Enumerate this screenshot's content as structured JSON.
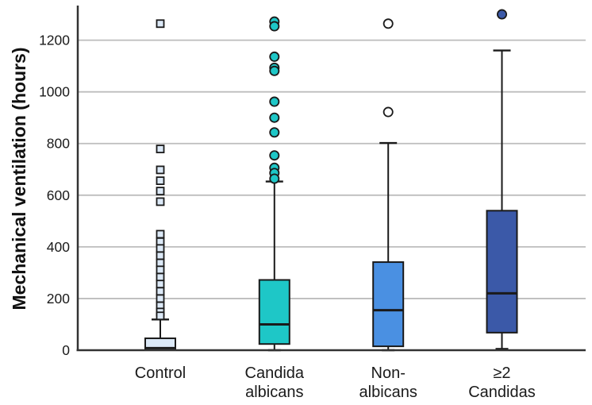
{
  "chart_data": {
    "type": "boxplot",
    "ylabel": "Mechanical ventilation (hours)",
    "xlabel": "",
    "ylim": [
      0,
      1334
    ],
    "yticks": [
      0,
      200,
      400,
      600,
      800,
      1000,
      1200
    ],
    "grid": "horizontal gridlines every 200, light gray",
    "legend": "none",
    "colors": {
      "gridline": "#BDBDBD",
      "axis": "#333333",
      "box_outline": "#1A1A1A",
      "control_fill": "#DCE9F7",
      "candida_albicans_fill": "#1EC7C7",
      "non_albicans_fill": "#4A90E2",
      "ge2_candidas_fill": "#3B59A8",
      "open_marker_fill": "#FFFFFF"
    },
    "groups": [
      {
        "label_lines": [
          "Control"
        ],
        "box_fill": "#DCE9F7",
        "marker": "square",
        "marker_fill": "#DCE9F7",
        "whisker_low": 0,
        "q1": 0,
        "median": 8,
        "q3": 46,
        "whisker_high": 119,
        "outliers": [
          1264,
          779,
          698,
          656,
          616,
          575,
          449,
          420,
          394,
          366,
          338,
          311,
          283,
          256,
          228,
          200,
          172,
          148,
          133
        ]
      },
      {
        "label_lines": [
          "Candida",
          "albicans"
        ],
        "box_fill": "#1EC7C7",
        "marker": "circle",
        "marker_fill": "#1EC7C7",
        "whisker_low": 0,
        "q1": 24,
        "median": 100,
        "q3": 272,
        "whisker_high": 653,
        "outliers": [
          1272,
          1254,
          1136,
          1093,
          1081,
          962,
          900,
          843,
          754,
          706,
          686,
          664
        ]
      },
      {
        "label_lines": [
          "Non-",
          "albicans"
        ],
        "box_fill": "#4A90E2",
        "marker": "circle",
        "marker_fill": "#FFFFFF",
        "whisker_low": 0,
        "q1": 15,
        "median": 155,
        "q3": 341,
        "whisker_high": 802,
        "outliers": [
          1264,
          922
        ]
      },
      {
        "label_lines": [
          "≥2",
          "Candidas"
        ],
        "box_fill": "#3B59A8",
        "marker": "circle",
        "marker_fill": "#3B59A8",
        "whisker_low": 5,
        "q1": 68,
        "median": 220,
        "q3": 540,
        "whisker_high": 1160,
        "outliers": [
          1300
        ]
      }
    ]
  }
}
